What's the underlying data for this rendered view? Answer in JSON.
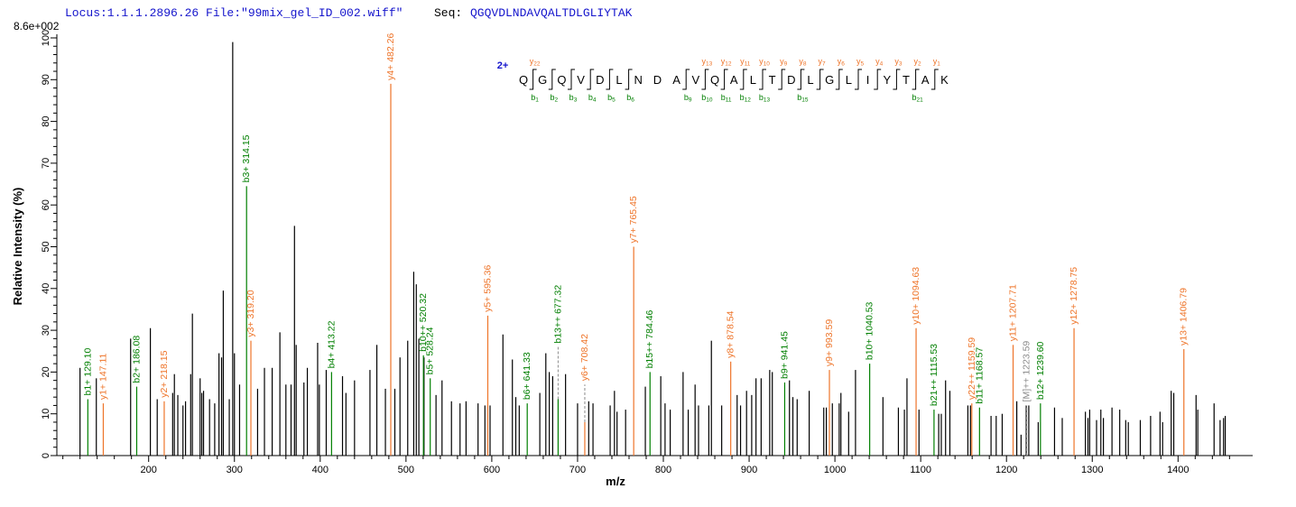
{
  "header": {
    "locus_text": "Locus:1.1.1.2896.26 File:\"99mix_gel_ID_002.wiff\"",
    "seq_label": "Seq:",
    "sequence": "QGQVDLNDAVQALTDLGLIYTAK",
    "max_intensity": "8.6e+002"
  },
  "colors": {
    "b_ion": "#007f00",
    "y_ion": "#ee7429",
    "precursor": "#8c8c8c",
    "peak": "#000000",
    "header_blue": "#1414cc",
    "axis": "#000000"
  },
  "ladder": {
    "charge_label": "2+",
    "residues": "QGQVDLNDAVQALTDLGLIYTAK",
    "y_marks": [
      {
        "gap": 1,
        "n": "22"
      },
      {
        "gap": 10,
        "n": "13"
      },
      {
        "gap": 11,
        "n": "12"
      },
      {
        "gap": 12,
        "n": "11"
      },
      {
        "gap": 13,
        "n": "10"
      },
      {
        "gap": 14,
        "n": "9"
      },
      {
        "gap": 15,
        "n": "8"
      },
      {
        "gap": 16,
        "n": "7"
      },
      {
        "gap": 17,
        "n": "6"
      },
      {
        "gap": 18,
        "n": "5"
      },
      {
        "gap": 19,
        "n": "4"
      },
      {
        "gap": 20,
        "n": "3"
      },
      {
        "gap": 21,
        "n": "2"
      },
      {
        "gap": 22,
        "n": "1"
      }
    ],
    "b_marks": [
      {
        "gap": 1,
        "n": "1"
      },
      {
        "gap": 2,
        "n": "2"
      },
      {
        "gap": 3,
        "n": "3"
      },
      {
        "gap": 4,
        "n": "4"
      },
      {
        "gap": 5,
        "n": "5"
      },
      {
        "gap": 6,
        "n": "6"
      },
      {
        "gap": 9,
        "n": "9"
      },
      {
        "gap": 10,
        "n": "10"
      },
      {
        "gap": 11,
        "n": "11"
      },
      {
        "gap": 12,
        "n": "12"
      },
      {
        "gap": 13,
        "n": "13"
      },
      {
        "gap": 15,
        "n": "15"
      },
      {
        "gap": 21,
        "n": "21"
      }
    ]
  },
  "chart_data": {
    "type": "bar",
    "subtype": "ms2-fragmentation-spectrum",
    "title": "",
    "xlabel": "m/z",
    "ylabel": "Relative  Intensity (%)",
    "xlim": [
      93,
      1487
    ],
    "ylim": [
      0,
      100
    ],
    "x_ticks": [
      200,
      300,
      400,
      500,
      600,
      700,
      800,
      900,
      1000,
      1100,
      1200,
      1300,
      1400
    ],
    "x_minor_step": 20,
    "x_minor_end": 1460,
    "y_ticks": [
      0,
      10,
      20,
      30,
      40,
      50,
      60,
      70,
      80,
      90,
      100
    ],
    "y_minor_step": 2,
    "grid": false,
    "annotated_peaks": [
      {
        "series": "b",
        "label": "b1+ 129.10",
        "mz": 129.1,
        "h": 13.5
      },
      {
        "series": "y",
        "label": "y1+ 147.11",
        "mz": 147.11,
        "h": 12.5
      },
      {
        "series": "b",
        "label": "b2+ 186.08",
        "mz": 186.08,
        "h": 16.5
      },
      {
        "series": "y",
        "label": "y2+ 218.15",
        "mz": 218.15,
        "h": 13
      },
      {
        "series": "b",
        "label": "b3+ 314.15",
        "mz": 314.15,
        "h": 64.5
      },
      {
        "series": "y",
        "label": "y3+ 319.20",
        "mz": 319.2,
        "h": 27.5
      },
      {
        "series": "b",
        "label": "b4+ 413.22",
        "mz": 413.22,
        "h": 20
      },
      {
        "series": "y",
        "label": "y4+ 482.26",
        "mz": 482.26,
        "h": 89
      },
      {
        "series": "b",
        "label": "b10++ 520.32",
        "mz": 520.32,
        "h": 24
      },
      {
        "series": "b",
        "label": "b5+ 528.24",
        "mz": 528.24,
        "h": 18.5
      },
      {
        "series": "y",
        "label": "y5+ 595.36",
        "mz": 595.36,
        "h": 33.5
      },
      {
        "series": "b",
        "label": "b6+ 641.33",
        "mz": 641.33,
        "h": 12.5
      },
      {
        "series": "b",
        "label": "b13++ 677.32",
        "mz": 677.32,
        "h": 13.5,
        "lh": 26,
        "dashed": true
      },
      {
        "series": "y",
        "label": "y6+ 708.42",
        "mz": 708.42,
        "h": 8,
        "lh": 17,
        "dashed": true
      },
      {
        "series": "y",
        "label": "y7+ 765.45",
        "mz": 765.45,
        "h": 50
      },
      {
        "series": "b",
        "label": "b15++ 784.46",
        "mz": 784.46,
        "h": 20
      },
      {
        "series": "y",
        "label": "y8+ 878.54",
        "mz": 878.54,
        "h": 22.5
      },
      {
        "series": "b",
        "label": "b9+ 941.45",
        "mz": 941.45,
        "h": 17.5
      },
      {
        "series": "y",
        "label": "y9+ 993.59",
        "mz": 993.59,
        "h": 20.5
      },
      {
        "series": "b",
        "label": "b10+ 1040.53",
        "mz": 1040.53,
        "h": 22
      },
      {
        "series": "y",
        "label": "y10+ 1094.63",
        "mz": 1094.63,
        "h": 30.5
      },
      {
        "series": "b",
        "label": "b21++ 1115.53",
        "mz": 1115.53,
        "h": 11
      },
      {
        "series": "y",
        "label": "y22++ 1159.59",
        "mz": 1159.59,
        "h": 12.5
      },
      {
        "series": "b",
        "label": "b11+ 1168.57",
        "mz": 1168.57,
        "h": 11.5
      },
      {
        "series": "y",
        "label": "y11+ 1207.71",
        "mz": 1207.71,
        "h": 26.5
      },
      {
        "series": "M",
        "label": "[M]++ 1223.59",
        "mz": 1223.59,
        "h": 12,
        "dashed": true
      },
      {
        "series": "b",
        "label": "b12+ 1239.60",
        "mz": 1239.6,
        "h": 12.5
      },
      {
        "series": "y",
        "label": "y12+ 1278.75",
        "mz": 1278.75,
        "h": 30.5
      },
      {
        "series": "y",
        "label": "y13+ 1406.79",
        "mz": 1406.79,
        "h": 25.5
      }
    ],
    "unannotated_peaks": [
      [
        120,
        21
      ],
      [
        139,
        18.5
      ],
      [
        179,
        28
      ],
      [
        202,
        30.5
      ],
      [
        210,
        13.5
      ],
      [
        228,
        15
      ],
      [
        230,
        19.5
      ],
      [
        234,
        14.5
      ],
      [
        240,
        12
      ],
      [
        243,
        13
      ],
      [
        249,
        19.5
      ],
      [
        251,
        34
      ],
      [
        260,
        18.5
      ],
      [
        262,
        15
      ],
      [
        264,
        15.5
      ],
      [
        271,
        13.5
      ],
      [
        277,
        12.5
      ],
      [
        282,
        24.5
      ],
      [
        285,
        23.5
      ],
      [
        287,
        39.5
      ],
      [
        294,
        13.5
      ],
      [
        298,
        99
      ],
      [
        300,
        24.5
      ],
      [
        306,
        17
      ],
      [
        327,
        16
      ],
      [
        335,
        21
      ],
      [
        344,
        21
      ],
      [
        353,
        29.5
      ],
      [
        360,
        17
      ],
      [
        366,
        17
      ],
      [
        370,
        55
      ],
      [
        372,
        26.5
      ],
      [
        381,
        17.5
      ],
      [
        385,
        21
      ],
      [
        397,
        27
      ],
      [
        399,
        17
      ],
      [
        407,
        20.5
      ],
      [
        426,
        19
      ],
      [
        430,
        15
      ],
      [
        440,
        18
      ],
      [
        458,
        20.5
      ],
      [
        466,
        26.5
      ],
      [
        476,
        16
      ],
      [
        487,
        16
      ],
      [
        493,
        23.5
      ],
      [
        502,
        27.5
      ],
      [
        509,
        44
      ],
      [
        512,
        41
      ],
      [
        515,
        28
      ],
      [
        521,
        23.5
      ],
      [
        535,
        14.5
      ],
      [
        542,
        18
      ],
      [
        553,
        13
      ],
      [
        563,
        12.5
      ],
      [
        570,
        13
      ],
      [
        584,
        12.5
      ],
      [
        592,
        12
      ],
      [
        598,
        12
      ],
      [
        613,
        29
      ],
      [
        624,
        23
      ],
      [
        628,
        14
      ],
      [
        632,
        12
      ],
      [
        656,
        15
      ],
      [
        663,
        24.5
      ],
      [
        667,
        20
      ],
      [
        671,
        19
      ],
      [
        686,
        19.5
      ],
      [
        700,
        12.5
      ],
      [
        713,
        13
      ],
      [
        718,
        12.5
      ],
      [
        738,
        12
      ],
      [
        743,
        15.5
      ],
      [
        746,
        10.5
      ],
      [
        756,
        11
      ],
      [
        779,
        16.5
      ],
      [
        797,
        19
      ],
      [
        802,
        12.5
      ],
      [
        808,
        11
      ],
      [
        823,
        20
      ],
      [
        829,
        11
      ],
      [
        837,
        17
      ],
      [
        841,
        12
      ],
      [
        853,
        12
      ],
      [
        856,
        27.5
      ],
      [
        868,
        12
      ],
      [
        886,
        14.5
      ],
      [
        890,
        12
      ],
      [
        897,
        15.5
      ],
      [
        903,
        14.5
      ],
      [
        908,
        18.5
      ],
      [
        914,
        18.5
      ],
      [
        924,
        20.5
      ],
      [
        927,
        20
      ],
      [
        947,
        18
      ],
      [
        951,
        14
      ],
      [
        956,
        13.5
      ],
      [
        970,
        15.5
      ],
      [
        987,
        11.5
      ],
      [
        990,
        11.5
      ],
      [
        997,
        12.5
      ],
      [
        1005,
        12.5
      ],
      [
        1007,
        15
      ],
      [
        1016,
        10.5
      ],
      [
        1024,
        20.5
      ],
      [
        1056,
        14
      ],
      [
        1074,
        11.5
      ],
      [
        1081,
        11
      ],
      [
        1084,
        18.5
      ],
      [
        1098,
        11
      ],
      [
        1121,
        10
      ],
      [
        1124,
        10
      ],
      [
        1129,
        18
      ],
      [
        1134,
        15.5
      ],
      [
        1155,
        12
      ],
      [
        1158,
        12
      ],
      [
        1182,
        9.5
      ],
      [
        1188,
        9.5
      ],
      [
        1195,
        10
      ],
      [
        1212,
        13
      ],
      [
        1217,
        5
      ],
      [
        1223,
        12
      ],
      [
        1226,
        12
      ],
      [
        1237,
        8
      ],
      [
        1256,
        11.5
      ],
      [
        1265,
        9
      ],
      [
        1292,
        10.5
      ],
      [
        1295,
        9
      ],
      [
        1297,
        11
      ],
      [
        1305,
        8.5
      ],
      [
        1310,
        11
      ],
      [
        1313,
        9
      ],
      [
        1323,
        11.5
      ],
      [
        1332,
        11
      ],
      [
        1339,
        8.5
      ],
      [
        1342,
        8
      ],
      [
        1356,
        8.5
      ],
      [
        1368,
        9.5
      ],
      [
        1379,
        10.5
      ],
      [
        1382,
        8
      ],
      [
        1392,
        15.5
      ],
      [
        1395,
        15
      ],
      [
        1421,
        14.5
      ],
      [
        1423,
        11
      ],
      [
        1442,
        12.5
      ],
      [
        1449,
        8.5
      ],
      [
        1453,
        9
      ],
      [
        1455,
        9.5
      ]
    ]
  }
}
